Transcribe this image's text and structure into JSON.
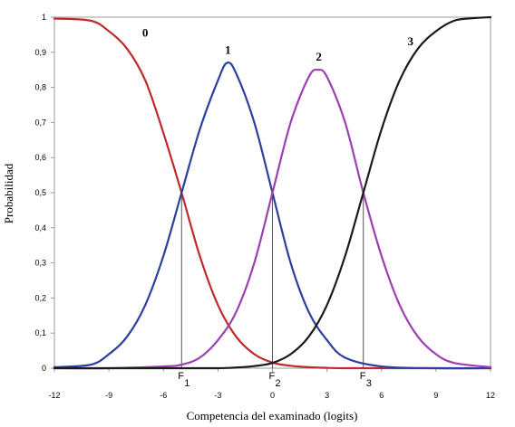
{
  "chart_data": {
    "type": "line",
    "title": "",
    "xlabel": "Competencia del examinado (logits)",
    "ylabel": "Probabilidad",
    "xlim": [
      -12,
      12
    ],
    "ylim": [
      0,
      1
    ],
    "x_ticks": [
      "-12",
      "-9",
      "-6",
      "-3",
      "0",
      "3",
      "6",
      "9",
      "12"
    ],
    "y_ticks": [
      "0",
      "0,1",
      "0,2",
      "0,3",
      "0,4",
      "0,5",
      "0,6",
      "0,7",
      "0,8",
      "0,9",
      "1"
    ],
    "grid": false,
    "series": [
      {
        "name": "0",
        "color": "#c0282d",
        "x": [
          -12,
          -10,
          -9,
          -8,
          -7,
          -6,
          -5,
          -4,
          -3,
          -2,
          -1,
          0,
          1,
          2,
          3,
          4,
          6,
          9,
          12
        ],
        "y": [
          0.996,
          0.99,
          0.96,
          0.91,
          0.82,
          0.67,
          0.5,
          0.32,
          0.18,
          0.09,
          0.04,
          0.016,
          0.007,
          0.003,
          0.001,
          0.0,
          0.0,
          0.0,
          0.0
        ]
      },
      {
        "name": "1",
        "color": "#2b3f9c",
        "x": [
          -12,
          -10,
          -9,
          -8,
          -7,
          -6,
          -5,
          -4,
          -3,
          -2.5,
          -2,
          -1,
          0,
          1,
          2,
          3,
          4,
          6,
          9,
          12
        ],
        "y": [
          0.003,
          0.01,
          0.04,
          0.09,
          0.18,
          0.32,
          0.5,
          0.68,
          0.82,
          0.87,
          0.84,
          0.7,
          0.5,
          0.3,
          0.16,
          0.08,
          0.03,
          0.005,
          0.0,
          0.0
        ]
      },
      {
        "name": "2",
        "color": "#9b3fb3",
        "x": [
          -12,
          -9,
          -6,
          -5,
          -4,
          -3,
          -2,
          -1,
          0,
          1,
          2,
          2.5,
          3,
          4,
          5,
          6,
          7,
          8,
          9,
          10,
          12
        ],
        "y": [
          0.0,
          0.0,
          0.005,
          0.01,
          0.03,
          0.08,
          0.16,
          0.3,
          0.5,
          0.7,
          0.83,
          0.85,
          0.83,
          0.7,
          0.5,
          0.32,
          0.18,
          0.09,
          0.04,
          0.015,
          0.003
        ]
      },
      {
        "name": "3",
        "color": "#1a1a1a",
        "x": [
          -12,
          -6,
          -3,
          -2,
          -1,
          0,
          1,
          2,
          3,
          4,
          5,
          6,
          7,
          8,
          9,
          10,
          11,
          12
        ],
        "y": [
          0.0,
          0.0,
          0.0,
          0.002,
          0.006,
          0.015,
          0.04,
          0.09,
          0.18,
          0.32,
          0.5,
          0.68,
          0.82,
          0.91,
          0.96,
          0.99,
          0.997,
          1.0
        ]
      }
    ],
    "markers": [
      {
        "label": "F",
        "sub": "1",
        "x": -5,
        "y": 0.5
      },
      {
        "label": "F",
        "sub": "2",
        "x": 0,
        "y": 0.5
      },
      {
        "label": "F",
        "sub": "3",
        "x": 5,
        "y": 0.5
      }
    ]
  }
}
